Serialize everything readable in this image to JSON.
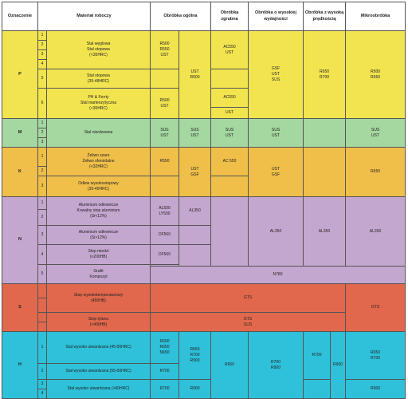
{
  "headers": {
    "oznaczenie": "Oznaczenie",
    "material": "Materiał roboczy",
    "ogolna": "Obróbka ogólna",
    "zgrubna": [
      "Obróbka",
      "zgrubna"
    ],
    "wydajnosci": [
      "Obróbka o wysokiej",
      "wydajności"
    ],
    "predkosc": [
      "Obróbka z wysoką",
      "prędkością"
    ],
    "mikro": "Mikroobróbka"
  },
  "colors": {
    "P": "#f2e44f",
    "M": "#a5d7a0",
    "K": "#f0bf4a",
    "N": "#c4a7cf",
    "S": "#e1684c",
    "H": "#2ec1d9"
  },
  "nums": [
    "1",
    "2",
    "3",
    "4",
    "5",
    "6",
    "1",
    "2",
    "3",
    "1",
    "2",
    "3",
    "1",
    "2",
    "3",
    "4",
    "5",
    "1",
    "2",
    "3",
    "4"
  ],
  "groups": {
    "P": "P",
    "M": "M",
    "K": "K",
    "N": "N",
    "S": "S",
    "H": "H"
  },
  "P": {
    "mat1": [
      "Stal węglowa",
      "Stal stopowa",
      "(<35HRC)"
    ],
    "mat5": [
      "Stal stopowa",
      "(35-48HRC)"
    ],
    "mat6": [
      "PH & Ferrty",
      "Stal martenzytyczna",
      "(<35HRC)"
    ],
    "og1": [
      "R500",
      "R550",
      "UST"
    ],
    "og6": [
      "R500",
      "UST"
    ],
    "og_b": [
      "UST",
      "R600"
    ],
    "zg1": [
      "AC550",
      "UST"
    ],
    "zg6a": "AC550",
    "zg6b": "UST",
    "wyd": [
      "GSF",
      "UST",
      "SUS"
    ],
    "pred": [
      "R650",
      "R700"
    ],
    "mikro": [
      "R500",
      "R650"
    ]
  },
  "M": {
    "mat": "Stal nierdzewna",
    "og_a": [
      "SUS",
      "UST"
    ],
    "og_b": [
      "SUS",
      "UST"
    ],
    "zg": [
      "SUS",
      "UST"
    ],
    "wyd": [
      "SUS",
      "UST"
    ],
    "mikro": [
      "SUS",
      "UST"
    ]
  },
  "K": {
    "mat12": [
      "Żeliwo szare",
      "Żeliwo sferoidalne",
      "(<32HRC)"
    ],
    "mat3": [
      "Odlew wysokostopowy",
      "(35-45HRC)"
    ],
    "og_a": "R550",
    "og_b": [
      "UST",
      "GSF"
    ],
    "zg": "AC 550",
    "wyd": [
      "UST",
      "GSF"
    ],
    "mikro": "R650"
  },
  "N": {
    "mat12": [
      "Aluminium odlewnicze",
      "Kowalny stop aluminium",
      "(Si<12%)"
    ],
    "mat3": [
      "Aluminium odlewnicze",
      "(Si>12%)"
    ],
    "mat4": [
      "Stop miedzi",
      "(<200HB)"
    ],
    "mat5": [
      "Grafit",
      "Kompozyt"
    ],
    "og12": [
      "AL500",
      "LY500"
    ],
    "og_b": "AL350",
    "og3": "DF560",
    "og4": "DF560",
    "wyd": "AL350",
    "pred": "AL350",
    "mikro": "AL350",
    "graf": "N780"
  },
  "S": {
    "mat12": [
      "Stop wysokotemperaturowy",
      "(450HB)"
    ],
    "mat34": [
      "Stop tytanu",
      "(<400HB)"
    ],
    "r1": "GTS",
    "r2": [
      "GTS",
      "SUS"
    ],
    "mikro": "GTS"
  },
  "H": {
    "mat1": "Stal wysoko utwardzana (45-55HRC)",
    "mat2": "Stal wysoko utwardzana (55-60HRC)",
    "mat34": "Stal wysoko utwardzana (>60HRC)",
    "og1": [
      "R600",
      "R650",
      "N650"
    ],
    "og2": "R700",
    "og34": "R700",
    "og_b": [
      "R650",
      "R700",
      "R900"
    ],
    "og_b34": "R900",
    "zg": "R650",
    "wyd": [
      "R700",
      "R900"
    ],
    "pred_a": "R700",
    "pred_b": "R900",
    "mikro": [
      "R650",
      "R700"
    ],
    "mikro34": "R900"
  }
}
